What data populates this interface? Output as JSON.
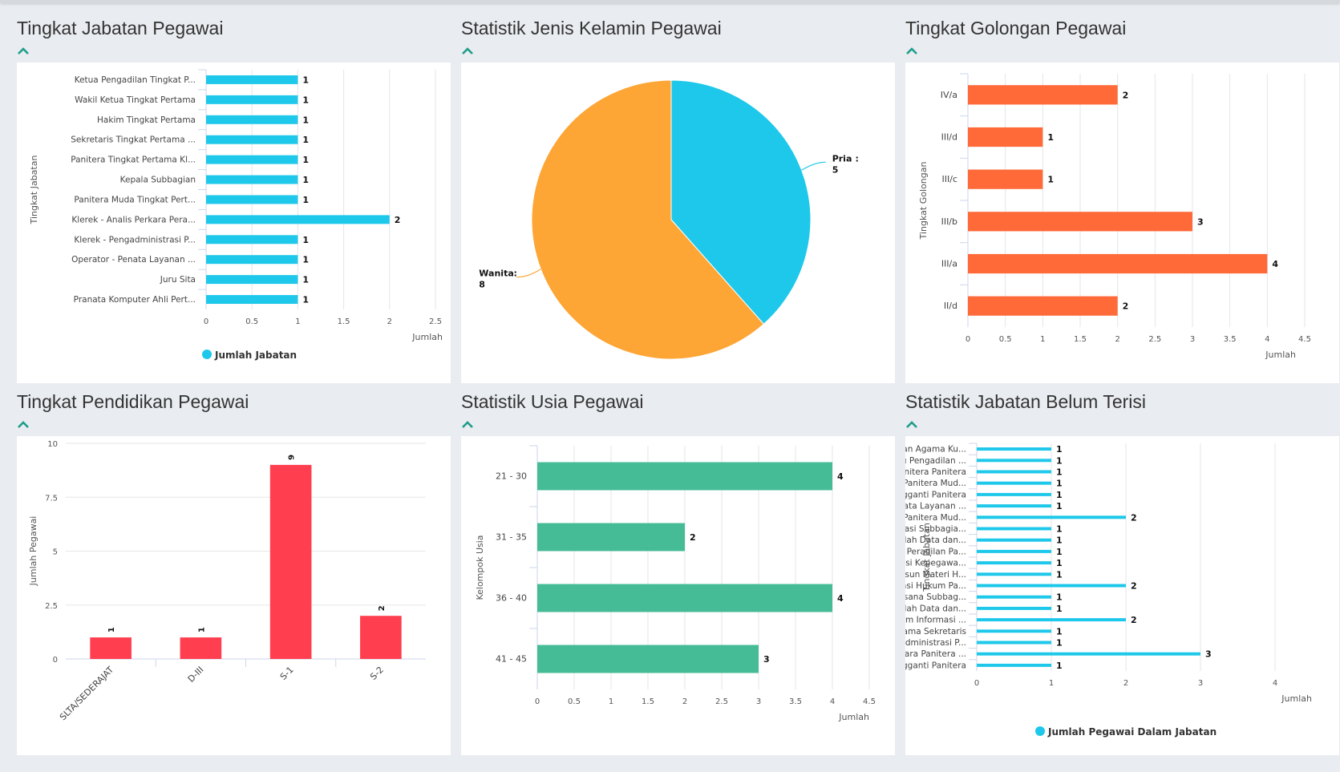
{
  "sections": [
    {
      "title": "Tingkat Jabatan Pegawai"
    },
    {
      "title": "Statistik Jenis Kelamin Pegawai"
    },
    {
      "title": "Tingkat Golongan Pegawai"
    },
    {
      "title": "Tingkat Pendidikan Pegawai"
    },
    {
      "title": "Statistik Usia Pegawai"
    },
    {
      "title": "Statistik Jabatan Belum Terisi"
    }
  ],
  "colors": {
    "cyan": "#1ec8ea",
    "orange": "#fda535",
    "redorange": "#ff6a38",
    "red": "#ff3f4f",
    "green": "#45bb96",
    "grid": "#e6e6e6",
    "text": "#555555"
  },
  "chart_data": [
    {
      "type": "bar",
      "orientation": "horizontal",
      "title": "Tingkat Jabatan Pegawai",
      "categories": [
        "Ketua Pengadilan Tingkat P...",
        "Wakil Ketua Tingkat Pertama",
        "Hakim Tingkat Pertama",
        "Sekretaris Tingkat Pertama ...",
        "Panitera Tingkat Pertama Kl...",
        "Kepala Subbagian",
        "Panitera Muda Tingkat Pert...",
        "Klerek - Analis Perkara Pera...",
        "Klerek - Pengadministrasi P...",
        "Operator - Penata Layanan ...",
        "Juru Sita",
        "Pranata Komputer Ahli Pert..."
      ],
      "values": [
        1,
        1,
        1,
        1,
        1,
        1,
        1,
        2,
        1,
        1,
        1,
        1
      ],
      "xlabel": "Jumlah",
      "ylabel": "Tingkat Jabatan",
      "xlim": [
        0,
        2.5
      ],
      "ticks": [
        0,
        0.5,
        1,
        1.5,
        2,
        2.5
      ],
      "tick_labels": [
        "0",
        "0.5",
        "1",
        "1.5",
        "2",
        "2.5"
      ],
      "legend": "Jumlah Jabatan",
      "legend_position": "bottom-center"
    },
    {
      "type": "pie",
      "title": "Statistik Jenis Kelamin Pegawai",
      "slices": [
        {
          "label": "Pria",
          "value": 5
        },
        {
          "label": "Wanita",
          "value": 8
        }
      ]
    },
    {
      "type": "bar",
      "orientation": "horizontal",
      "title": "Tingkat Golongan Pegawai",
      "categories": [
        "IV/a",
        "III/d",
        "III/c",
        "III/b",
        "III/a",
        "II/d"
      ],
      "values": [
        2,
        1,
        1,
        3,
        4,
        2
      ],
      "xlabel": "Jumlah",
      "ylabel": "Tingkat Golongan",
      "xlim": [
        0,
        4.5
      ],
      "ticks": [
        0,
        0.5,
        1,
        1.5,
        2,
        2.5,
        3,
        3.5,
        4,
        4.5
      ],
      "tick_labels": [
        "0",
        "0.5",
        "1",
        "1.5",
        "2",
        "2.5",
        "3",
        "3.5",
        "4",
        "4.5"
      ]
    },
    {
      "type": "bar",
      "orientation": "vertical",
      "title": "Tingkat Pendidikan Pegawai",
      "categories": [
        "SLTA/SEDERAJAT",
        "D-III",
        "S-1",
        "S-2"
      ],
      "values": [
        1,
        1,
        9,
        2
      ],
      "ylabel": "Jumlah Pegawai",
      "ylim": [
        0,
        10
      ],
      "ticks": [
        0,
        2.5,
        5,
        7.5,
        10
      ],
      "tick_labels": [
        "0",
        "2.5",
        "5",
        "7.5",
        "10"
      ]
    },
    {
      "type": "bar",
      "orientation": "horizontal",
      "title": "Statistik Usia Pegawai",
      "categories": [
        "21 - 30",
        "31 - 35",
        "36 - 40",
        "41 - 45"
      ],
      "values": [
        4,
        2,
        4,
        3
      ],
      "xlabel": "Jumlah",
      "ylabel": "Kelompok Usia",
      "xlim": [
        0,
        4.5
      ],
      "ticks": [
        0,
        0.5,
        1,
        1.5,
        2,
        2.5,
        3,
        3.5,
        4,
        4.5
      ],
      "tick_labels": [
        "0",
        "0.5",
        "1",
        "1.5",
        "2",
        "2.5",
        "3",
        "3.5",
        "4",
        "4.5"
      ]
    },
    {
      "type": "bar",
      "orientation": "horizontal",
      "title": "Statistik Jabatan Belum Terisi",
      "categories": [
        "Ketua Pengadilan Agama Ku...",
        "Hakim Non Palu Pengadilan ...",
        "Panitera Panitera",
        "Panitera Muda Panitera Mud...",
        "Panitera Pengganti Panitera",
        "Operator - Penata Layanan ...",
        "Analis Hukum Panitera Mud...",
        "Analis Organisasi Subbagia...",
        "Klerek - Pengolah Data dan...",
        "Analis Perkara Peradilan Pa...",
        "Pengadministrasi Kepegawa...",
        "Klerek - Penyusun Materi H...",
        "Pengadministrasi Hukum Pa...",
        "Analis Tata Laksana Subbag...",
        "Klerek - Pengolah Data dan...",
        "Pengelola Sistem Informasi ...",
        "Auditor Pertama Sekretaris",
        "Klerek - Pengadministrasi P...",
        "Pengelola Perkara Panitera ...",
        "Juru Sita Pengganti Panitera"
      ],
      "values": [
        1,
        1,
        1,
        1,
        1,
        1,
        2,
        1,
        1,
        1,
        1,
        1,
        2,
        1,
        1,
        2,
        1,
        1,
        3,
        1
      ],
      "xlabel": "Jumlah",
      "ylabel": "Tingkat Jabatan",
      "xlim": [
        0,
        4
      ],
      "ticks": [
        0,
        1,
        2,
        3,
        4
      ],
      "tick_labels": [
        "0",
        "1",
        "2",
        "3",
        "4"
      ],
      "legend": "Jumlah Pegawai Dalam Jabatan",
      "legend_position": "bottom-center"
    }
  ]
}
